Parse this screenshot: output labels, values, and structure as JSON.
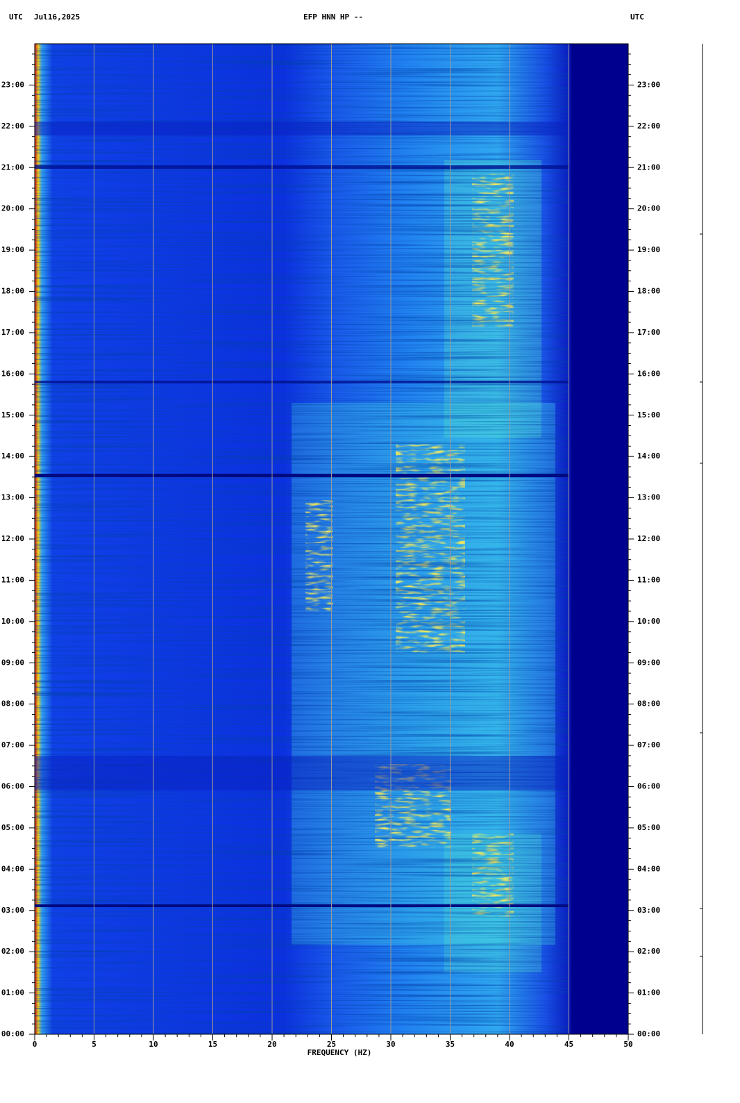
{
  "chart_data": {
    "type": "spectrogram",
    "title": "EFP HNN HP --",
    "date": "Jul16,2025",
    "ylabel": "UTC",
    "xlabel": "FREQUENCY (HZ)",
    "xlim": [
      0,
      50
    ],
    "xticks": [
      0,
      5,
      10,
      15,
      20,
      25,
      30,
      35,
      40,
      45,
      50
    ],
    "ylim": [
      0,
      24
    ],
    "yticks": [
      {
        "value": 0,
        "label": "00:00"
      },
      {
        "value": 1,
        "label": "01:00"
      },
      {
        "value": 2,
        "label": "02:00"
      },
      {
        "value": 3,
        "label": "03:00"
      },
      {
        "value": 4,
        "label": "04:00"
      },
      {
        "value": 5,
        "label": "05:00"
      },
      {
        "value": 6,
        "label": "06:00"
      },
      {
        "value": 7,
        "label": "07:00"
      },
      {
        "value": 8,
        "label": "08:00"
      },
      {
        "value": 9,
        "label": "09:00"
      },
      {
        "value": 10,
        "label": "10:00"
      },
      {
        "value": 11,
        "label": "11:00"
      },
      {
        "value": 12,
        "label": "12:00"
      },
      {
        "value": 13,
        "label": "13:00"
      },
      {
        "value": 14,
        "label": "14:00"
      },
      {
        "value": 15,
        "label": "15:00"
      },
      {
        "value": 16,
        "label": "16:00"
      },
      {
        "value": 17,
        "label": "17:00"
      },
      {
        "value": 18,
        "label": "18:00"
      },
      {
        "value": 19,
        "label": "19:00"
      },
      {
        "value": 20,
        "label": "20:00"
      },
      {
        "value": 21,
        "label": "21:00"
      },
      {
        "value": 22,
        "label": "22:00"
      },
      {
        "value": 23,
        "label": "23:00"
      }
    ],
    "grid": true,
    "grid_color": "#9a9a9a"
  }
}
